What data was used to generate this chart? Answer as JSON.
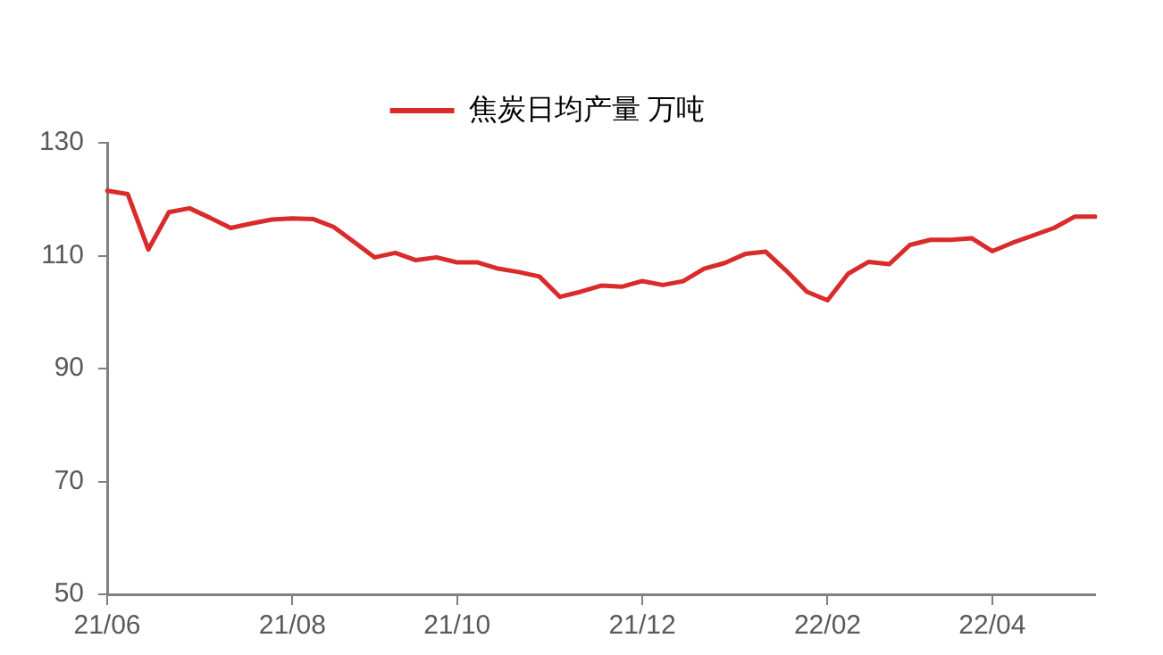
{
  "chart_data": {
    "type": "line",
    "legend": "top",
    "grid": false,
    "marker": "none",
    "line_style": "solid",
    "categories": [
      "21/06",
      null,
      null,
      null,
      null,
      null,
      null,
      null,
      null,
      "21/08",
      null,
      null,
      null,
      null,
      null,
      null,
      null,
      "21/10",
      null,
      null,
      null,
      null,
      null,
      null,
      null,
      null,
      "21/12",
      null,
      null,
      null,
      null,
      null,
      null,
      null,
      null,
      "22/02",
      null,
      null,
      null,
      null,
      null,
      null,
      null,
      "22/04",
      null,
      null,
      null,
      null,
      null
    ],
    "series": [
      {
        "name": "焦炭日均产量 万吨",
        "color": "#d92b2b",
        "values": [
          121.5,
          120.9,
          111.1,
          117.7,
          118.4,
          116.7,
          114.9,
          115.7,
          116.4,
          116.6,
          116.5,
          115.1,
          112.4,
          109.7,
          110.5,
          109.2,
          109.7,
          108.8,
          108.8,
          107.7,
          107.1,
          106.3,
          102.7,
          103.6,
          104.7,
          104.5,
          105.5,
          104.8,
          105.5,
          107.7,
          108.7,
          110.3,
          110.7,
          107.3,
          103.6,
          102.1,
          106.8,
          108.9,
          108.5,
          111.9,
          112.8,
          112.8,
          113.1,
          110.8,
          112.3,
          113.6,
          114.9,
          116.9,
          116.9
        ]
      }
    ],
    "ylim": [
      50,
      130
    ],
    "yticks": [
      50,
      70,
      90,
      110,
      130
    ]
  }
}
